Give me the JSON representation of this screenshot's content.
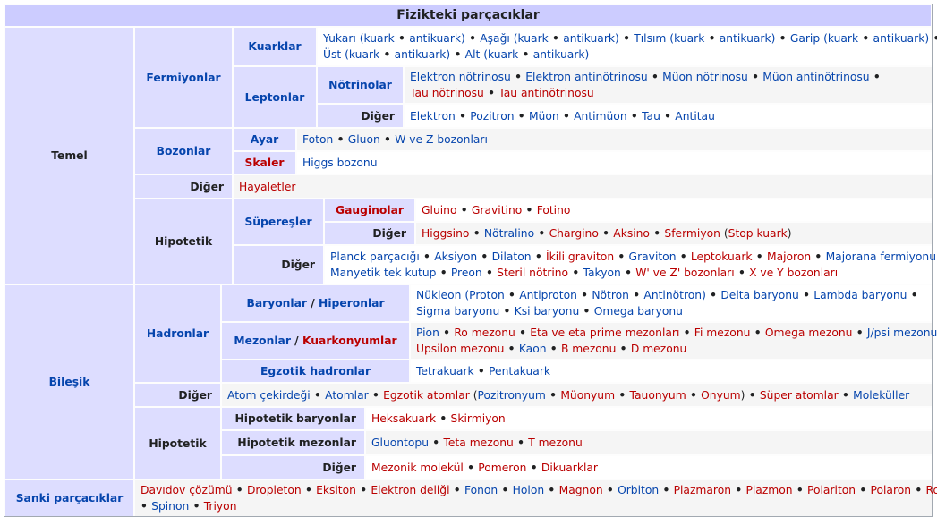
{
  "title": "Fizikteki parçacıklar",
  "groups": {
    "temel": "Temel",
    "fermiyonlar": "Fermiyonlar",
    "kuarklar": "Kuarklar",
    "leptonlar": "Leptonlar",
    "notrinolar": "Nötrinolar",
    "diger_lepton": "Diğer",
    "bozonlar": "Bozonlar",
    "ayar": "Ayar",
    "skaler": "Skaler",
    "diger_temel": "Diğer",
    "hipotetik": "Hipotetik",
    "superesler": "Süpereşler",
    "gauginolar": "Gauginolar",
    "diger_super": "Diğer",
    "diger_hipotetik": "Diğer",
    "bilesik": "Bileşik",
    "hadronlar": "Hadronlar",
    "baryonlar": "Baryonlar",
    "slash1": " / ",
    "hiperonlar": "Hiperonlar",
    "mezonlar": "Mezonlar",
    "slash2": " / ",
    "kuarkonyumlar": "Kuarkonyumlar",
    "egzotik_hadronlar": "Egzotik hadronlar",
    "diger_bilesik": "Diğer",
    "hipotetik_bilesik": "Hipotetik",
    "hipotetik_baryonlar": "Hipotetik baryonlar",
    "hipotetik_mezonlar": "Hipotetik mezonlar",
    "diger_hip_bilesik": "Diğer",
    "sanki": "Sanki parçacıklar"
  },
  "lists": {
    "kuarklar": [
      [
        {
          "t": "Yukarı (kuark",
          "c": "b"
        },
        {
          "t": " • ",
          "c": "d"
        },
        {
          "t": "antikuark)",
          "c": "b"
        },
        {
          "t": " • ",
          "c": "d"
        },
        {
          "t": "Aşağı (kuark",
          "c": "b"
        },
        {
          "t": " • ",
          "c": "d"
        },
        {
          "t": "antikuark)",
          "c": "b"
        },
        {
          "t": " • ",
          "c": "d"
        },
        {
          "t": "Tılsım (kuark",
          "c": "b"
        },
        {
          "t": " • ",
          "c": "d"
        },
        {
          "t": "antikuark)",
          "c": "b"
        },
        {
          "t": " • ",
          "c": "d"
        },
        {
          "t": "Garip (kuark",
          "c": "b"
        },
        {
          "t": " • ",
          "c": "d"
        },
        {
          "t": "antikuark)",
          "c": "b"
        },
        {
          "t": " •",
          "c": "d"
        }
      ],
      [
        {
          "t": "Üst (kuark",
          "c": "b"
        },
        {
          "t": " • ",
          "c": "d"
        },
        {
          "t": "antikuark)",
          "c": "b"
        },
        {
          "t": " • ",
          "c": "d"
        },
        {
          "t": "Alt (kuark",
          "c": "b"
        },
        {
          "t": " • ",
          "c": "d"
        },
        {
          "t": "antikuark)",
          "c": "b"
        }
      ]
    ],
    "notrinolar": [
      [
        {
          "t": "Elektron nötrinosu",
          "c": "b"
        },
        {
          "t": " • ",
          "c": "d"
        },
        {
          "t": "Elektron antinötrinosu",
          "c": "b"
        },
        {
          "t": " • ",
          "c": "d"
        },
        {
          "t": "Müon nötrinosu",
          "c": "b"
        },
        {
          "t": " • ",
          "c": "d"
        },
        {
          "t": "Müon antinötrinosu",
          "c": "b"
        },
        {
          "t": " •",
          "c": "d"
        }
      ],
      [
        {
          "t": "Tau nötrinosu",
          "c": "r"
        },
        {
          "t": " • ",
          "c": "d"
        },
        {
          "t": "Tau antinötrinosu",
          "c": "r"
        }
      ]
    ],
    "diger_lepton": [
      [
        {
          "t": "Elektron",
          "c": "b"
        },
        {
          "t": " • ",
          "c": "d"
        },
        {
          "t": "Pozitron",
          "c": "b"
        },
        {
          "t": " • ",
          "c": "d"
        },
        {
          "t": "Müon",
          "c": "b"
        },
        {
          "t": " • ",
          "c": "d"
        },
        {
          "t": "Antimüon",
          "c": "b"
        },
        {
          "t": " • ",
          "c": "d"
        },
        {
          "t": "Tau",
          "c": "b"
        },
        {
          "t": " • ",
          "c": "d"
        },
        {
          "t": "Antitau",
          "c": "b"
        }
      ]
    ],
    "ayar": [
      [
        {
          "t": "Foton",
          "c": "b"
        },
        {
          "t": " • ",
          "c": "d"
        },
        {
          "t": "Gluon",
          "c": "b"
        },
        {
          "t": " • ",
          "c": "d"
        },
        {
          "t": "W ve Z bozonları",
          "c": "b"
        }
      ]
    ],
    "skaler": [
      [
        {
          "t": "Higgs bozonu",
          "c": "b"
        }
      ]
    ],
    "diger_temel": [
      [
        {
          "t": "Hayaletler",
          "c": "r"
        }
      ]
    ],
    "gauginolar": [
      [
        {
          "t": "Gluino",
          "c": "r"
        },
        {
          "t": " • ",
          "c": "d"
        },
        {
          "t": "Gravitino",
          "c": "r"
        },
        {
          "t": " • ",
          "c": "d"
        },
        {
          "t": "Fotino",
          "c": "r"
        }
      ]
    ],
    "diger_super": [
      [
        {
          "t": "Higgsino",
          "c": "r"
        },
        {
          "t": " • ",
          "c": "d"
        },
        {
          "t": "Nötralino",
          "c": "b"
        },
        {
          "t": " • ",
          "c": "d"
        },
        {
          "t": "Chargino",
          "c": "r"
        },
        {
          "t": " • ",
          "c": "d"
        },
        {
          "t": "Aksino",
          "c": "r"
        },
        {
          "t": " • ",
          "c": "d"
        },
        {
          "t": "Sfermiyon",
          "c": "r"
        },
        {
          "t": " (",
          "c": "k"
        },
        {
          "t": "Stop kuark",
          "c": "r"
        },
        {
          "t": ")",
          "c": "k"
        }
      ]
    ],
    "diger_hipotetik": [
      [
        {
          "t": "Planck parçacığı",
          "c": "b"
        },
        {
          "t": " • ",
          "c": "d"
        },
        {
          "t": "Aksiyon",
          "c": "b"
        },
        {
          "t": " • ",
          "c": "d"
        },
        {
          "t": "Dilaton",
          "c": "b"
        },
        {
          "t": " • ",
          "c": "d"
        },
        {
          "t": "İkili graviton",
          "c": "r"
        },
        {
          "t": " • ",
          "c": "d"
        },
        {
          "t": "Graviton",
          "c": "b"
        },
        {
          "t": " • ",
          "c": "d"
        },
        {
          "t": "Leptokuark",
          "c": "r"
        },
        {
          "t": " • ",
          "c": "d"
        },
        {
          "t": "Majoron",
          "c": "r"
        },
        {
          "t": " • ",
          "c": "d"
        },
        {
          "t": "Majorana fermiyonu",
          "c": "b"
        },
        {
          "t": " •",
          "c": "d"
        }
      ],
      [
        {
          "t": "Manyetik tek kutup",
          "c": "b"
        },
        {
          "t": " • ",
          "c": "d"
        },
        {
          "t": "Preon",
          "c": "b"
        },
        {
          "t": " • ",
          "c": "d"
        },
        {
          "t": "Steril nötrino",
          "c": "r"
        },
        {
          "t": " • ",
          "c": "d"
        },
        {
          "t": "Takyon",
          "c": "b"
        },
        {
          "t": " • ",
          "c": "d"
        },
        {
          "t": "W' ve Z' bozonları",
          "c": "r"
        },
        {
          "t": " • ",
          "c": "d"
        },
        {
          "t": "X ve Y bozonları",
          "c": "r"
        }
      ]
    ],
    "baryonlar": [
      [
        {
          "t": "Nükleon (",
          "c": "b"
        },
        {
          "t": "Proton",
          "c": "b"
        },
        {
          "t": " • ",
          "c": "d"
        },
        {
          "t": "Antiproton",
          "c": "b"
        },
        {
          "t": " • ",
          "c": "d"
        },
        {
          "t": "Nötron",
          "c": "b"
        },
        {
          "t": " • ",
          "c": "d"
        },
        {
          "t": "Antinötron)",
          "c": "b"
        },
        {
          "t": " • ",
          "c": "d"
        },
        {
          "t": "Delta baryonu",
          "c": "b"
        },
        {
          "t": " • ",
          "c": "d"
        },
        {
          "t": "Lambda baryonu",
          "c": "b"
        },
        {
          "t": " •",
          "c": "d"
        }
      ],
      [
        {
          "t": "Sigma baryonu",
          "c": "b"
        },
        {
          "t": " • ",
          "c": "d"
        },
        {
          "t": "Ksi baryonu",
          "c": "b"
        },
        {
          "t": " • ",
          "c": "d"
        },
        {
          "t": "Omega baryonu",
          "c": "b"
        }
      ]
    ],
    "mezonlar": [
      [
        {
          "t": "Pion",
          "c": "b"
        },
        {
          "t": " • ",
          "c": "d"
        },
        {
          "t": "Ro mezonu",
          "c": "r"
        },
        {
          "t": " • ",
          "c": "d"
        },
        {
          "t": "Eta ve eta prime mezonları",
          "c": "r"
        },
        {
          "t": " • ",
          "c": "d"
        },
        {
          "t": "Fi mezonu",
          "c": "r"
        },
        {
          "t": " • ",
          "c": "d"
        },
        {
          "t": "Omega mezonu",
          "c": "r"
        },
        {
          "t": " • ",
          "c": "d"
        },
        {
          "t": "J/psi mezonu",
          "c": "b"
        },
        {
          "t": " •",
          "c": "d"
        }
      ],
      [
        {
          "t": "Upsilon mezonu",
          "c": "r"
        },
        {
          "t": " • ",
          "c": "d"
        },
        {
          "t": "Kaon",
          "c": "b"
        },
        {
          "t": " • ",
          "c": "d"
        },
        {
          "t": "B mezonu",
          "c": "r"
        },
        {
          "t": " • ",
          "c": "d"
        },
        {
          "t": "D mezonu",
          "c": "r"
        }
      ]
    ],
    "egzotik": [
      [
        {
          "t": "Tetrakuark",
          "c": "b"
        },
        {
          "t": " • ",
          "c": "d"
        },
        {
          "t": "Pentakuark",
          "c": "b"
        }
      ]
    ],
    "diger_bilesik": [
      [
        {
          "t": "Atom çekirdeği",
          "c": "b"
        },
        {
          "t": " • ",
          "c": "d"
        },
        {
          "t": "Atomlar",
          "c": "b"
        },
        {
          "t": " • ",
          "c": "d"
        },
        {
          "t": "Egzotik atomlar",
          "c": "r"
        },
        {
          "t": " (",
          "c": "k"
        },
        {
          "t": "Pozitronyum",
          "c": "b"
        },
        {
          "t": " • ",
          "c": "d"
        },
        {
          "t": "Müonyum",
          "c": "r"
        },
        {
          "t": " • ",
          "c": "d"
        },
        {
          "t": "Tauonyum",
          "c": "r"
        },
        {
          "t": " • ",
          "c": "d"
        },
        {
          "t": "Onyum",
          "c": "r"
        },
        {
          "t": ")",
          "c": "k"
        },
        {
          "t": " • ",
          "c": "d"
        },
        {
          "t": "Süper atomlar",
          "c": "r"
        },
        {
          "t": " • ",
          "c": "d"
        },
        {
          "t": "Moleküller",
          "c": "b"
        }
      ]
    ],
    "hip_baryonlar": [
      [
        {
          "t": "Heksakuark",
          "c": "r"
        },
        {
          "t": " • ",
          "c": "d"
        },
        {
          "t": "Skirmiyon",
          "c": "r"
        }
      ]
    ],
    "hip_mezonlar": [
      [
        {
          "t": "Gluontopu",
          "c": "b"
        },
        {
          "t": " • ",
          "c": "d"
        },
        {
          "t": "Teta mezonu",
          "c": "r"
        },
        {
          "t": " • ",
          "c": "d"
        },
        {
          "t": "T mezonu",
          "c": "r"
        }
      ]
    ],
    "diger_hip_bilesik": [
      [
        {
          "t": "Mezonik molekül",
          "c": "r"
        },
        {
          "t": " • ",
          "c": "d"
        },
        {
          "t": "Pomeron",
          "c": "r"
        },
        {
          "t": " • ",
          "c": "d"
        },
        {
          "t": "Dikuarklar",
          "c": "r"
        }
      ]
    ],
    "sanki": [
      [
        {
          "t": "Davıdov çözümü",
          "c": "r"
        },
        {
          "t": " • ",
          "c": "d"
        },
        {
          "t": "Dropleton",
          "c": "r"
        },
        {
          "t": " • ",
          "c": "d"
        },
        {
          "t": "Eksiton",
          "c": "r"
        },
        {
          "t": " • ",
          "c": "d"
        },
        {
          "t": "Elektron deliği",
          "c": "r"
        },
        {
          "t": " • ",
          "c": "d"
        },
        {
          "t": "Fonon",
          "c": "b"
        },
        {
          "t": " • ",
          "c": "d"
        },
        {
          "t": "Holon",
          "c": "b"
        },
        {
          "t": " • ",
          "c": "d"
        },
        {
          "t": "Magnon",
          "c": "r"
        },
        {
          "t": " • ",
          "c": "d"
        },
        {
          "t": "Orbiton",
          "c": "b"
        },
        {
          "t": " • ",
          "c": "d"
        },
        {
          "t": "Plazmaron",
          "c": "r"
        },
        {
          "t": " • ",
          "c": "d"
        },
        {
          "t": "Plazmon",
          "c": "r"
        },
        {
          "t": " • ",
          "c": "d"
        },
        {
          "t": "Polariton",
          "c": "r"
        },
        {
          "t": " • ",
          "c": "d"
        },
        {
          "t": "Polaron",
          "c": "r"
        },
        {
          "t": " • ",
          "c": "d"
        },
        {
          "t": "Roton",
          "c": "r"
        }
      ],
      [
        {
          "t": "• ",
          "c": "d"
        },
        {
          "t": "Spinon",
          "c": "b"
        },
        {
          "t": " • ",
          "c": "d"
        },
        {
          "t": "Triyon",
          "c": "r"
        }
      ]
    ]
  },
  "colors": {
    "group_bg": "#ddddff",
    "title_bg": "#ccccff",
    "link": "#0645ad",
    "redlink": "#ba0000"
  }
}
